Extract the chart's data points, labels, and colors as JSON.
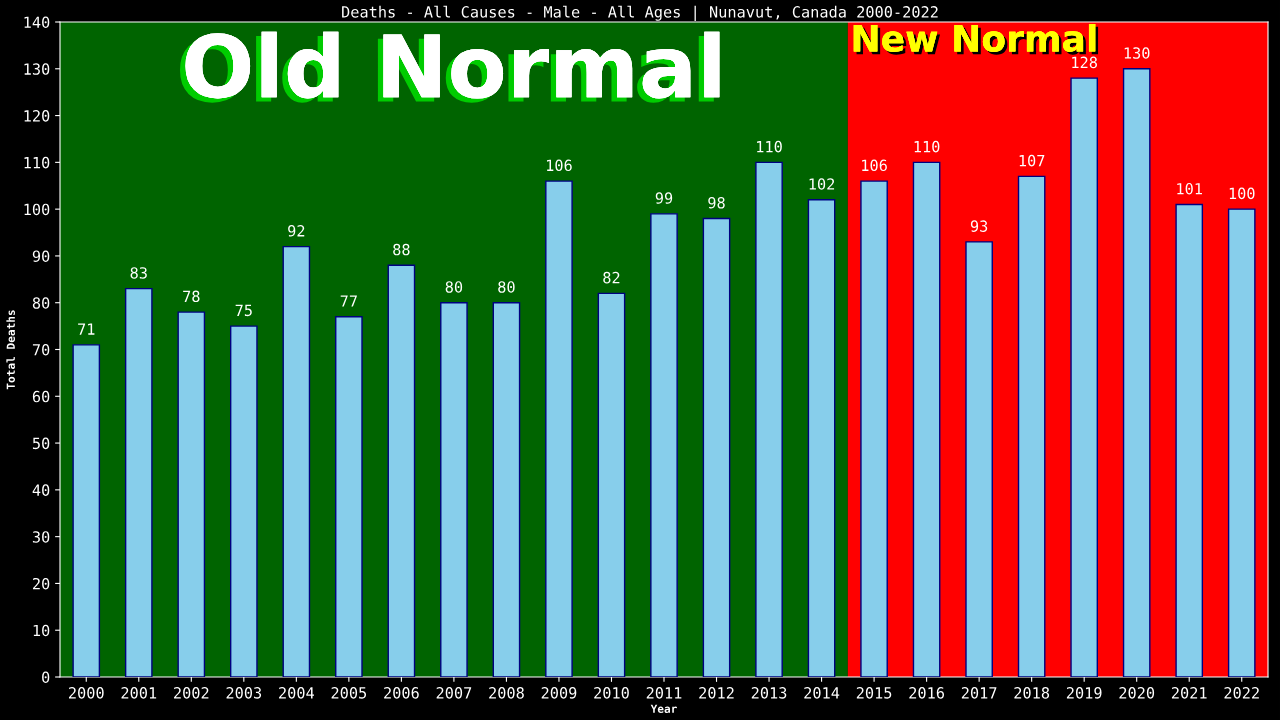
{
  "chart_data": {
    "type": "bar",
    "title": "Deaths - All Causes - Male - All Ages | Nunavut, Canada 2000-2022",
    "xlabel": "Year",
    "ylabel": "Total Deaths",
    "categories": [
      "2000",
      "2001",
      "2002",
      "2003",
      "2004",
      "2005",
      "2006",
      "2007",
      "2008",
      "2009",
      "2010",
      "2011",
      "2012",
      "2013",
      "2014",
      "2015",
      "2016",
      "2017",
      "2018",
      "2019",
      "2020",
      "2021",
      "2022"
    ],
    "values": [
      71,
      83,
      78,
      75,
      92,
      77,
      88,
      80,
      80,
      106,
      82,
      99,
      98,
      110,
      102,
      106,
      110,
      93,
      107,
      128,
      130,
      101,
      100
    ],
    "color": "#87ceeb",
    "data_labels": true,
    "ylim": [
      0,
      140
    ],
    "yticks": [
      0,
      10,
      20,
      30,
      40,
      50,
      60,
      70,
      80,
      90,
      100,
      110,
      120,
      130,
      140
    ],
    "grid": false,
    "bands": [
      {
        "axis": "x",
        "from": "2000",
        "to": "2014",
        "label": "Old Normal",
        "color": "#006400"
      },
      {
        "axis": "x",
        "from": "2015",
        "to": "2022",
        "label": "New Normal",
        "color": "#ff0000"
      }
    ]
  }
}
